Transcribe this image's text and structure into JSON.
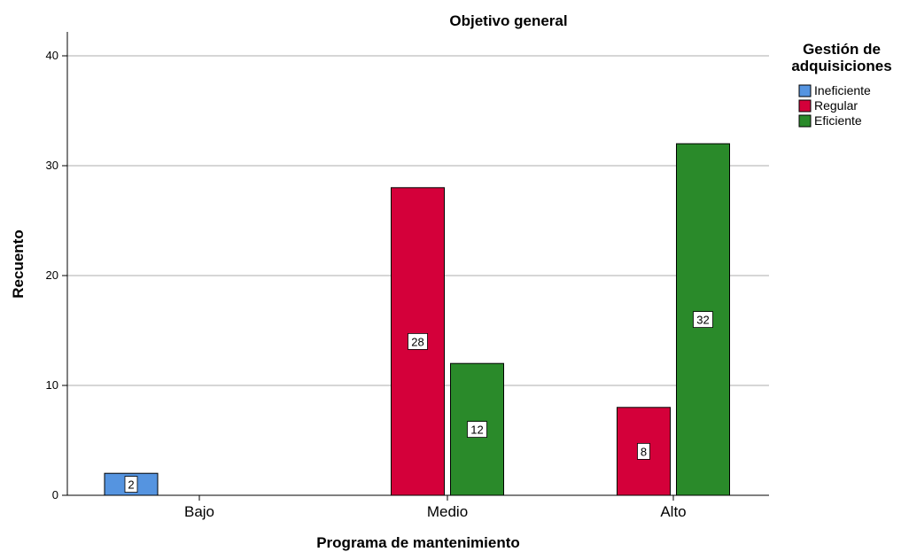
{
  "chart_data": {
    "type": "bar",
    "title": "Objetivo general",
    "xlabel": "Programa de mantenimiento",
    "ylabel": "Recuento",
    "categories": [
      "Bajo",
      "Medio",
      "Alto"
    ],
    "series": [
      {
        "name": "Ineficiente",
        "color": "#5594e0",
        "values": [
          2,
          null,
          null
        ]
      },
      {
        "name": "Regular",
        "color": "#d4003a",
        "values": [
          null,
          28,
          8
        ]
      },
      {
        "name": "Eficiente",
        "color": "#2a8a2a",
        "values": [
          null,
          12,
          32
        ]
      }
    ],
    "ylim": [
      0,
      42
    ],
    "yticks": [
      0,
      10,
      20,
      30,
      40
    ],
    "grid": true,
    "legend": {
      "title_line1": "Gestión de",
      "title_line2": "adquisiciones",
      "position": "top-right"
    }
  }
}
